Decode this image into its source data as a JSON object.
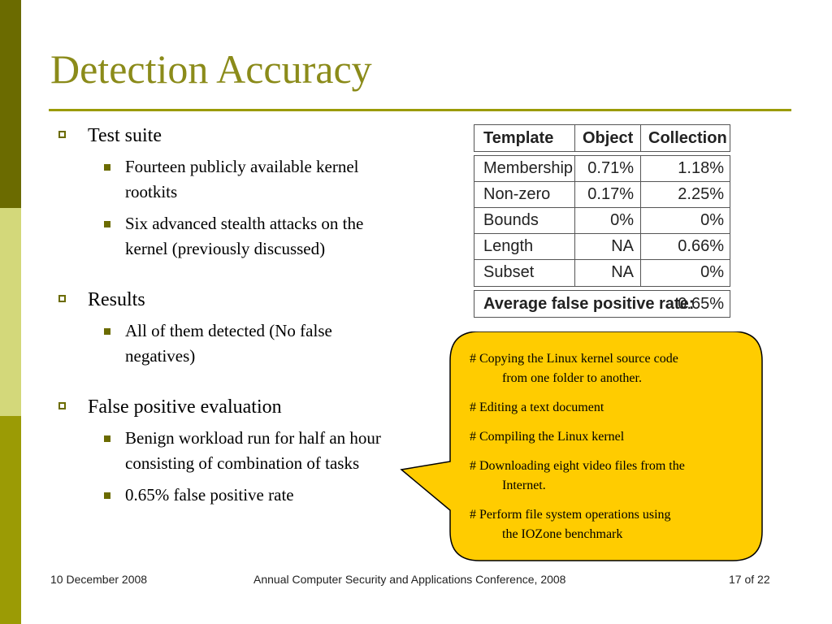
{
  "title": "Detection Accuracy",
  "bullets": [
    {
      "text": "Test suite",
      "subs": [
        "Fourteen publicly available kernel rootkits",
        "Six advanced stealth attacks on the kernel (previously discussed)"
      ]
    },
    {
      "text": "Results",
      "subs": [
        "All of them detected (No false negatives)"
      ]
    },
    {
      "text": "False positive evaluation",
      "subs": [
        "Benign workload run for half an hour consisting of combination of tasks",
        "0.65% false positive rate"
      ]
    }
  ],
  "table": {
    "headers": [
      "Template",
      "Object",
      "Collection"
    ],
    "rows": [
      [
        "Membership",
        "0.71%",
        "1.18%"
      ],
      [
        "Non-zero",
        "0.17%",
        "2.25%"
      ],
      [
        "Bounds",
        "0%",
        "0%"
      ],
      [
        "Length",
        "NA",
        "0.66%"
      ],
      [
        "Subset",
        "NA",
        "0%"
      ]
    ],
    "summary_label": "Average false positive rate:",
    "summary_value": "0.65%"
  },
  "callout": {
    "items": [
      {
        "line1": "# Copying the Linux kernel source code",
        "line2": "from one folder to another."
      },
      {
        "line1": "# Editing a text document",
        "line2": ""
      },
      {
        "line1": "# Compiling the Linux kernel",
        "line2": ""
      },
      {
        "line1": "# Downloading eight video files from the",
        "line2": "Internet."
      },
      {
        "line1": "# Perform file system operations using",
        "line2": "the IOZone benchmark"
      }
    ],
    "fill": "#ffcc00"
  },
  "footer": {
    "date": "10 December 2008",
    "conference": "Annual Computer Security and Applications Conference, 2008",
    "page_current": "17",
    "page_of": "of",
    "page_total": "22"
  }
}
